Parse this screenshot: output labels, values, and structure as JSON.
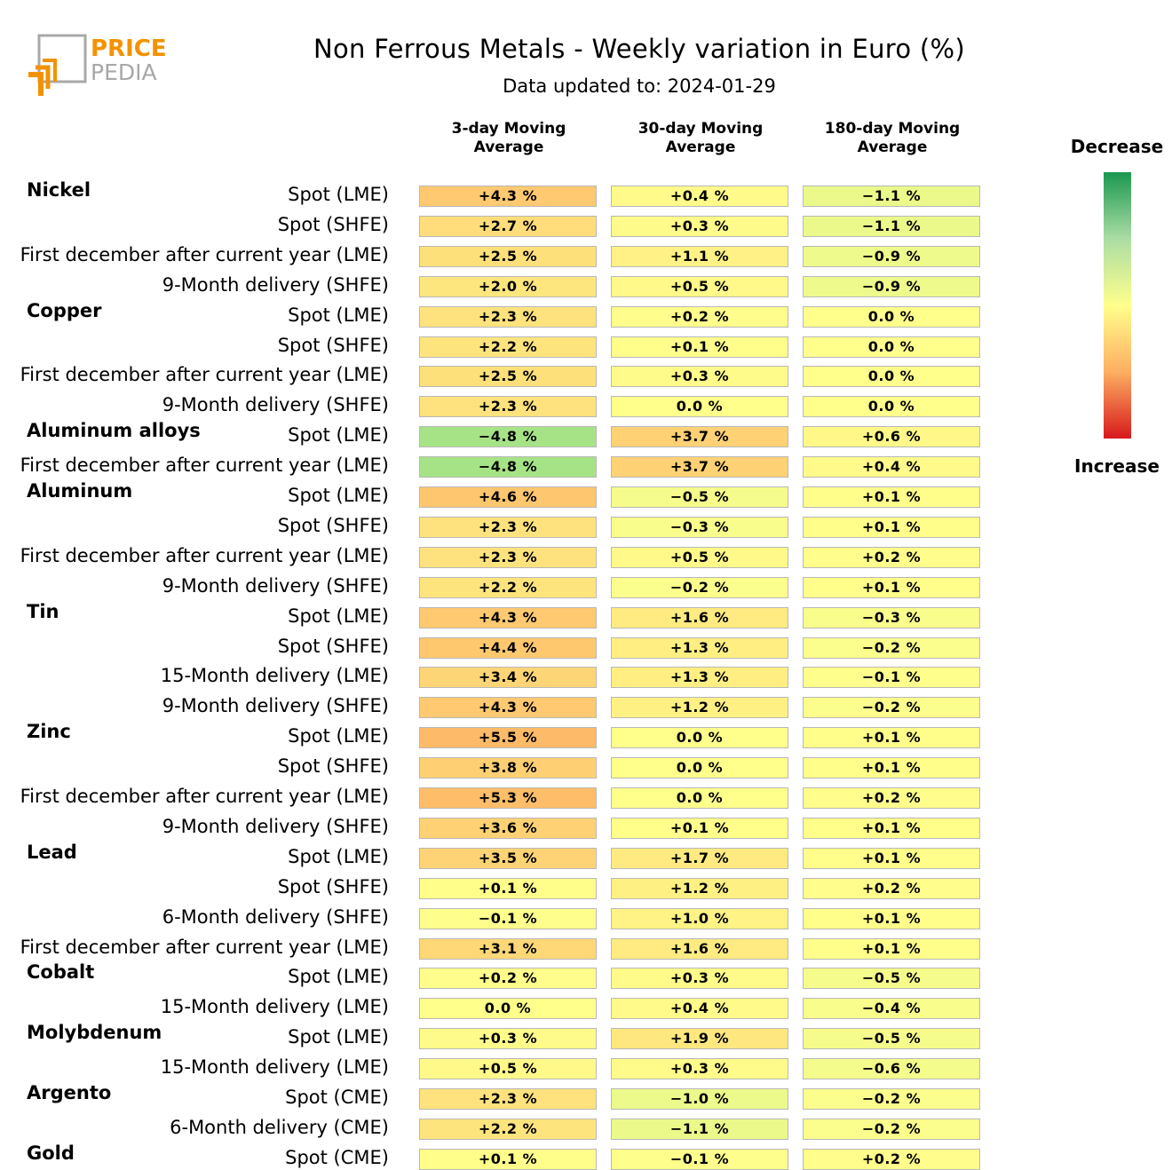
{
  "logo": {
    "line1": "PRICE",
    "line2": "PEDIA"
  },
  "title": "Non Ferrous Metals - Weekly variation in Euro (%)",
  "subtitle": "Data updated to: 2024-01-29",
  "chart_data": {
    "type": "table",
    "columns": [
      "3-day Moving\nAverage",
      "30-day Moving\nAverage",
      "180-day Moving\nAverage"
    ],
    "groups": [
      {
        "name": "Nickel",
        "rows": [
          {
            "label": "Spot (LME)",
            "values": [
              4.3,
              0.4,
              -1.1
            ],
            "text": [
              "+4.3 %",
              "+0.4 %",
              "−1.1 %"
            ]
          },
          {
            "label": "Spot (SHFE)",
            "values": [
              2.7,
              0.3,
              -1.1
            ],
            "text": [
              "+2.7 %",
              "+0.3 %",
              "−1.1 %"
            ]
          },
          {
            "label": "First december after current year (LME)",
            "values": [
              2.5,
              1.1,
              -0.9
            ],
            "text": [
              "+2.5 %",
              "+1.1 %",
              "−0.9 %"
            ]
          },
          {
            "label": "9-Month delivery (SHFE)",
            "values": [
              2.0,
              0.5,
              -0.9
            ],
            "text": [
              "+2.0 %",
              "+0.5 %",
              "−0.9 %"
            ]
          }
        ]
      },
      {
        "name": "Copper",
        "rows": [
          {
            "label": "Spot (LME)",
            "values": [
              2.3,
              0.2,
              0.0
            ],
            "text": [
              "+2.3 %",
              "+0.2 %",
              "0.0 %"
            ]
          },
          {
            "label": "Spot (SHFE)",
            "values": [
              2.2,
              0.1,
              0.0
            ],
            "text": [
              "+2.2 %",
              "+0.1 %",
              "0.0 %"
            ]
          },
          {
            "label": "First december after current year (LME)",
            "values": [
              2.5,
              0.3,
              0.0
            ],
            "text": [
              "+2.5 %",
              "+0.3 %",
              "0.0 %"
            ]
          },
          {
            "label": "9-Month delivery (SHFE)",
            "values": [
              2.3,
              0.0,
              0.0
            ],
            "text": [
              "+2.3 %",
              "0.0 %",
              "0.0 %"
            ]
          }
        ]
      },
      {
        "name": "Aluminum alloys",
        "rows": [
          {
            "label": "Spot (LME)",
            "values": [
              -4.8,
              3.7,
              0.6
            ],
            "text": [
              "−4.8 %",
              "+3.7 %",
              "+0.6 %"
            ]
          },
          {
            "label": "First december after current year (LME)",
            "values": [
              -4.8,
              3.7,
              0.4
            ],
            "text": [
              "−4.8 %",
              "+3.7 %",
              "+0.4 %"
            ]
          }
        ]
      },
      {
        "name": "Aluminum",
        "rows": [
          {
            "label": "Spot (LME)",
            "values": [
              4.6,
              -0.5,
              0.1
            ],
            "text": [
              "+4.6 %",
              "−0.5 %",
              "+0.1 %"
            ]
          },
          {
            "label": "Spot (SHFE)",
            "values": [
              2.3,
              -0.3,
              0.1
            ],
            "text": [
              "+2.3 %",
              "−0.3 %",
              "+0.1 %"
            ]
          },
          {
            "label": "First december after current year (LME)",
            "values": [
              2.3,
              0.5,
              0.2
            ],
            "text": [
              "+2.3 %",
              "+0.5 %",
              "+0.2 %"
            ]
          },
          {
            "label": "9-Month delivery (SHFE)",
            "values": [
              2.2,
              -0.2,
              0.1
            ],
            "text": [
              "+2.2 %",
              "−0.2 %",
              "+0.1 %"
            ]
          }
        ]
      },
      {
        "name": "Tin",
        "rows": [
          {
            "label": "Spot (LME)",
            "values": [
              4.3,
              1.6,
              -0.3
            ],
            "text": [
              "+4.3 %",
              "+1.6 %",
              "−0.3 %"
            ]
          },
          {
            "label": "Spot (SHFE)",
            "values": [
              4.4,
              1.3,
              -0.2
            ],
            "text": [
              "+4.4 %",
              "+1.3 %",
              "−0.2 %"
            ]
          },
          {
            "label": "15-Month delivery (LME)",
            "values": [
              3.4,
              1.3,
              -0.1
            ],
            "text": [
              "+3.4 %",
              "+1.3 %",
              "−0.1 %"
            ]
          },
          {
            "label": "9-Month delivery (SHFE)",
            "values": [
              4.3,
              1.2,
              -0.2
            ],
            "text": [
              "+4.3 %",
              "+1.2 %",
              "−0.2 %"
            ]
          }
        ]
      },
      {
        "name": "Zinc",
        "rows": [
          {
            "label": "Spot (LME)",
            "values": [
              5.5,
              0.0,
              0.1
            ],
            "text": [
              "+5.5 %",
              "0.0 %",
              "+0.1 %"
            ]
          },
          {
            "label": "Spot (SHFE)",
            "values": [
              3.8,
              0.0,
              0.1
            ],
            "text": [
              "+3.8 %",
              "0.0 %",
              "+0.1 %"
            ]
          },
          {
            "label": "First december after current year (LME)",
            "values": [
              5.3,
              0.0,
              0.2
            ],
            "text": [
              "+5.3 %",
              "0.0 %",
              "+0.2 %"
            ]
          },
          {
            "label": "9-Month delivery (SHFE)",
            "values": [
              3.6,
              0.1,
              0.1
            ],
            "text": [
              "+3.6 %",
              "+0.1 %",
              "+0.1 %"
            ]
          }
        ]
      },
      {
        "name": "Lead",
        "rows": [
          {
            "label": "Spot (LME)",
            "values": [
              3.5,
              1.7,
              0.1
            ],
            "text": [
              "+3.5 %",
              "+1.7 %",
              "+0.1 %"
            ]
          },
          {
            "label": "Spot (SHFE)",
            "values": [
              0.1,
              1.2,
              0.2
            ],
            "text": [
              "+0.1 %",
              "+1.2 %",
              "+0.2 %"
            ]
          },
          {
            "label": "6-Month delivery (SHFE)",
            "values": [
              -0.1,
              1.0,
              0.1
            ],
            "text": [
              "−0.1 %",
              "+1.0 %",
              "+0.1 %"
            ]
          },
          {
            "label": "First december after current year (LME)",
            "values": [
              3.1,
              1.6,
              0.1
            ],
            "text": [
              "+3.1 %",
              "+1.6 %",
              "+0.1 %"
            ]
          }
        ]
      },
      {
        "name": "Cobalt",
        "rows": [
          {
            "label": "Spot (LME)",
            "values": [
              0.2,
              0.3,
              -0.5
            ],
            "text": [
              "+0.2 %",
              "+0.3 %",
              "−0.5 %"
            ]
          },
          {
            "label": "15-Month delivery (LME)",
            "values": [
              0.0,
              0.4,
              -0.4
            ],
            "text": [
              "0.0 %",
              "+0.4 %",
              "−0.4 %"
            ]
          }
        ]
      },
      {
        "name": "Molybdenum",
        "rows": [
          {
            "label": "Spot (LME)",
            "values": [
              0.3,
              1.9,
              -0.5
            ],
            "text": [
              "+0.3 %",
              "+1.9 %",
              "−0.5 %"
            ]
          },
          {
            "label": "15-Month delivery (LME)",
            "values": [
              0.5,
              0.3,
              -0.6
            ],
            "text": [
              "+0.5 %",
              "+0.3 %",
              "−0.6 %"
            ]
          }
        ]
      },
      {
        "name": "Argento",
        "rows": [
          {
            "label": "Spot (CME)",
            "values": [
              2.3,
              -1.0,
              -0.2
            ],
            "text": [
              "+2.3 %",
              "−1.0 %",
              "−0.2 %"
            ]
          },
          {
            "label": "6-Month delivery (CME)",
            "values": [
              2.2,
              -1.1,
              -0.2
            ],
            "text": [
              "+2.2 %",
              "−1.1 %",
              "−0.2 %"
            ]
          }
        ]
      },
      {
        "name": "Gold",
        "rows": [
          {
            "label": "Spot (CME)",
            "values": [
              0.1,
              -0.1,
              0.2
            ],
            "text": [
              "+0.1 %",
              "−0.1 %",
              "+0.2 %"
            ]
          }
        ]
      }
    ],
    "legend": {
      "top_label": "Decrease",
      "bottom_label": "Increase",
      "gradient_colors": [
        "#d7191c",
        "#fdae61",
        "#ffff8c",
        "#abdda4",
        "#1a9850"
      ]
    },
    "colors": {
      "zero": "#ffff8c",
      "positive_max": "#fdae61",
      "negative_max": "#a6e386"
    }
  }
}
